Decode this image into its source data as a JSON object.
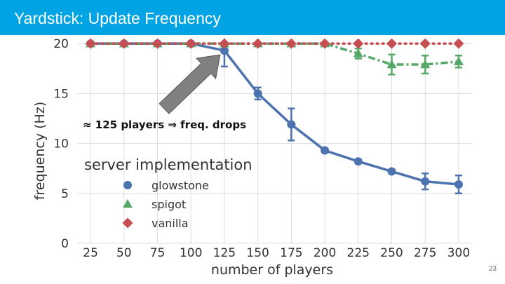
{
  "slide": {
    "title": "Yardstick: Update Frequency",
    "page_number": "23",
    "colors": {
      "title_bar": "#00a4e4",
      "title_text": "#ffffff"
    }
  },
  "chart_data": {
    "type": "line",
    "xlabel": "number of players",
    "ylabel": "frequency (Hz)",
    "x": [
      25,
      50,
      75,
      100,
      125,
      150,
      175,
      200,
      225,
      250,
      275,
      300
    ],
    "x_tick_labels": [
      "25",
      "50",
      "75",
      "100",
      "125",
      "150",
      "175",
      "200",
      "225",
      "250",
      "275",
      "300"
    ],
    "y_ticks": [
      0,
      5,
      10,
      15,
      20
    ],
    "y_tick_labels": [
      "0",
      "5",
      "10",
      "15",
      "20"
    ],
    "ylim": [
      0,
      20.5
    ],
    "grid": true,
    "legend": {
      "title": "server implementation",
      "placement": "lower-left"
    },
    "series": [
      {
        "name": "glowstone",
        "marker": "circle",
        "line": "solid",
        "color": "#4c72b0",
        "values": [
          20,
          20,
          20,
          20,
          19.3,
          15,
          11.9,
          9.3,
          8.2,
          7.2,
          6.2,
          5.9
        ],
        "err": [
          0,
          0,
          0,
          0,
          1.6,
          0.6,
          1.6,
          0,
          0,
          0,
          0.8,
          0.9
        ]
      },
      {
        "name": "spigot",
        "marker": "triangle",
        "line": "dashdot",
        "color": "#55a868",
        "values": [
          20,
          20,
          20,
          20,
          20,
          20,
          20,
          20,
          19,
          17.9,
          17.9,
          18.2
        ],
        "err": [
          0,
          0,
          0,
          0,
          0,
          0,
          0,
          0,
          0.5,
          1.0,
          0.9,
          0.6
        ]
      },
      {
        "name": "vanilla",
        "marker": "diamond",
        "line": "dotted",
        "color": "#c44e52",
        "values": [
          20,
          20,
          20,
          20,
          20,
          20,
          20,
          20,
          20,
          20,
          20,
          20
        ],
        "err": [
          0,
          0,
          0,
          0,
          0,
          0,
          0,
          0,
          0,
          0,
          0,
          0
        ]
      }
    ],
    "annotation": {
      "text": "≈ 125 players ⇒ freq. drops",
      "points_to_x": 125,
      "points_to_y": 19.3
    }
  }
}
